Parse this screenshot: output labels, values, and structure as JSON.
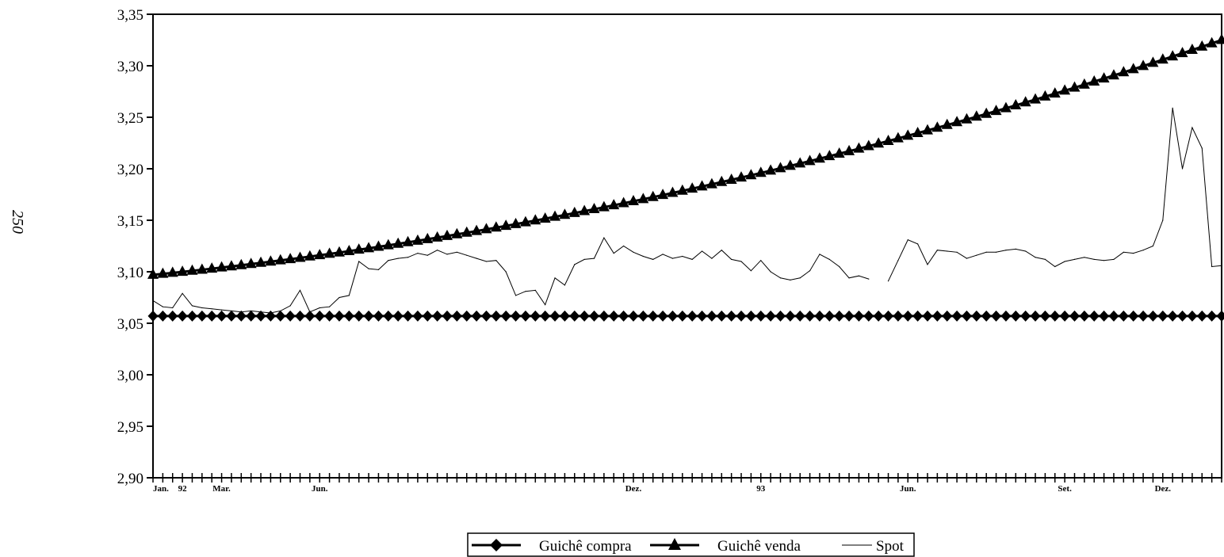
{
  "page": {
    "page_number": "250"
  },
  "chart_data": {
    "type": "line",
    "title": "",
    "xlabel": "",
    "ylabel": "",
    "ylim": [
      2.9,
      3.35
    ],
    "y_ticks": [
      "2,90",
      "2,95",
      "3,00",
      "3,05",
      "3,10",
      "3,15",
      "3,20",
      "3,25",
      "3,30",
      "3,35"
    ],
    "x_tick_labels": [
      {
        "index": 0,
        "label": "Jan."
      },
      {
        "index": 3,
        "label": "92"
      },
      {
        "index": 7,
        "label": "Mar."
      },
      {
        "index": 17,
        "label": "Jun."
      },
      {
        "index": 49,
        "label": "Dez."
      },
      {
        "index": 62,
        "label": "93"
      },
      {
        "index": 77,
        "label": "Jun."
      },
      {
        "index": 93,
        "label": "Set."
      },
      {
        "index": 103,
        "label": "Dez."
      }
    ],
    "grid": false,
    "legend_position": "bottom",
    "series": [
      {
        "name": "Guichê compra",
        "marker": "diamond",
        "color": "#000000",
        "start": 3.057,
        "end": 3.057
      },
      {
        "name": "Guichê venda",
        "marker": "triangle",
        "color": "#000000",
        "start": 3.097,
        "end": 3.325,
        "curve": "convex"
      },
      {
        "name": "Spot",
        "marker": "none",
        "color": "#000000",
        "values": [
          3.072,
          3.066,
          3.065,
          3.079,
          3.067,
          3.065,
          3.064,
          3.063,
          3.062,
          3.061,
          3.062,
          3.061,
          3.06,
          3.062,
          3.067,
          3.082,
          3.061,
          3.065,
          3.066,
          3.075,
          3.077,
          3.11,
          3.103,
          3.102,
          3.111,
          3.113,
          3.114,
          3.118,
          3.116,
          3.121,
          3.117,
          3.119,
          3.116,
          3.113,
          3.11,
          3.111,
          3.1,
          3.077,
          3.081,
          3.082,
          3.068,
          3.094,
          3.087,
          3.107,
          3.112,
          3.113,
          3.133,
          3.118,
          3.125,
          3.119,
          3.115,
          3.112,
          3.117,
          3.113,
          3.115,
          3.112,
          3.12,
          3.113,
          3.121,
          3.112,
          3.11,
          3.101,
          3.111,
          3.1,
          3.094,
          3.092,
          3.094,
          3.101,
          3.117,
          3.112,
          3.105,
          3.094,
          3.096,
          3.093,
          null,
          3.091,
          3.111,
          3.131,
          3.127,
          3.107,
          3.121,
          3.12,
          3.119,
          3.113,
          3.116,
          3.119,
          3.119,
          3.121,
          3.122,
          3.12,
          3.114,
          3.112,
          3.105,
          3.11,
          3.112,
          3.114,
          3.112,
          3.111,
          3.112,
          3.119,
          3.118,
          3.121,
          3.125,
          3.15,
          3.259,
          3.2,
          3.24,
          3.22,
          3.105,
          3.106
        ]
      }
    ]
  }
}
